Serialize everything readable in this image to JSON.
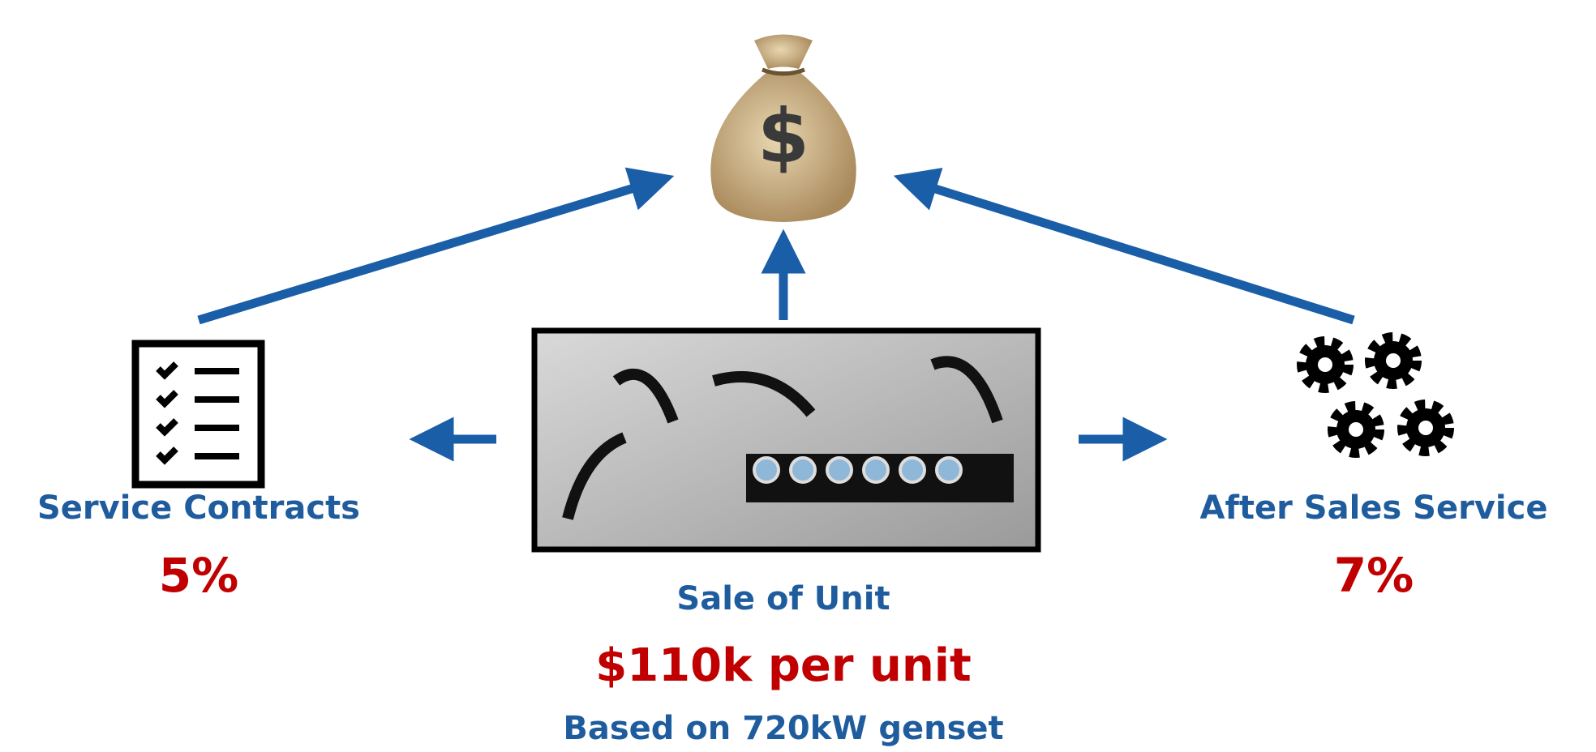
{
  "money_bag": {
    "symbol": "$"
  },
  "left": {
    "label": "Service Contracts",
    "value": "5%"
  },
  "right": {
    "label": "After Sales Service",
    "value": "7%"
  },
  "center": {
    "label": "Sale of Unit",
    "price": "$110k per unit",
    "note": "Based on 720kW genset"
  }
}
